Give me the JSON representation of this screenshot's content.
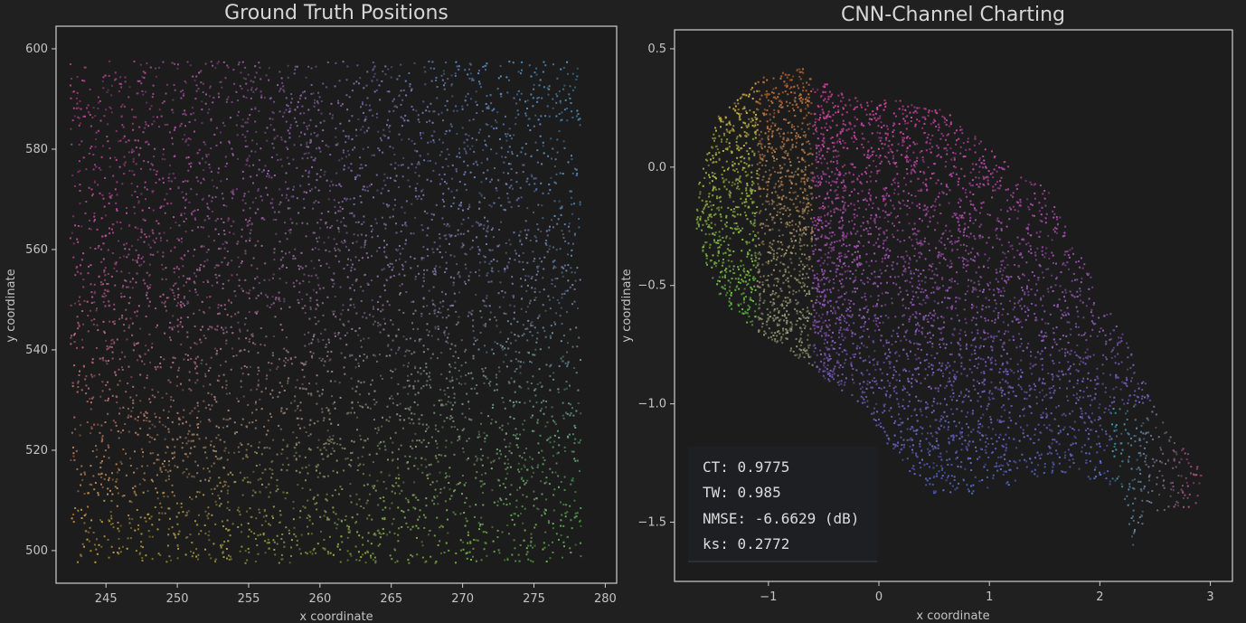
{
  "colors": {
    "background": "#202020",
    "axes_face": "#1c1c1c",
    "frame": "#cfcfcf",
    "text": "#c4c4c4",
    "title": "#d6d6d6",
    "stat_box": "#1d1f22"
  },
  "chart_data": [
    {
      "type": "scatter",
      "title": "Ground Truth Positions",
      "xlabel": "x coordinate",
      "ylabel": "y coordinate",
      "xlim": [
        241.5,
        280.8
      ],
      "ylim": [
        493.5,
        604.5
      ],
      "xticks": [
        245,
        250,
        255,
        260,
        265,
        270,
        275,
        280
      ],
      "yticks": [
        500,
        520,
        540,
        560,
        580,
        600
      ],
      "x_range_points": [
        242.5,
        278.3
      ],
      "y_range_points": [
        497.5,
        597.5
      ],
      "approx_points": 5200,
      "color_mapping": {
        "bottom_left": "#c9a23c",
        "bottom_right": "#5fb84a",
        "top_left": "#c0408f",
        "top_right": "#4a9dc6",
        "middle": "#b056b8"
      },
      "grid": false,
      "legend": "none"
    },
    {
      "type": "scatter",
      "title": "CNN-Channel Charting",
      "xlabel": "x coordinate",
      "ylabel": "y coordinate",
      "xlim": [
        -1.85,
        3.2
      ],
      "ylim": [
        -1.75,
        0.58
      ],
      "xticks": [
        -1,
        0,
        1,
        2,
        3
      ],
      "yticks": [
        0.5,
        0.0,
        -0.5,
        -1.0,
        -1.5
      ],
      "approx_points": 5200,
      "cloud_outline": [
        [
          -1.65,
          -0.1
        ],
        [
          -1.45,
          0.22
        ],
        [
          -1.05,
          0.38
        ],
        [
          -0.7,
          0.42
        ],
        [
          -0.3,
          0.3
        ],
        [
          0.2,
          0.28
        ],
        [
          0.6,
          0.24
        ],
        [
          0.9,
          0.12
        ],
        [
          1.2,
          0.0
        ],
        [
          1.55,
          -0.1
        ],
        [
          1.9,
          -0.45
        ],
        [
          2.2,
          -0.7
        ],
        [
          2.55,
          -1.05
        ],
        [
          2.95,
          -1.3
        ],
        [
          2.85,
          -1.45
        ],
        [
          2.45,
          -1.45
        ],
        [
          2.3,
          -1.6
        ],
        [
          2.2,
          -1.35
        ],
        [
          1.5,
          -1.3
        ],
        [
          0.9,
          -1.38
        ],
        [
          0.5,
          -1.38
        ],
        [
          0.2,
          -1.25
        ],
        [
          -0.2,
          -1.0
        ],
        [
          -0.6,
          -0.85
        ],
        [
          -1.1,
          -0.7
        ],
        [
          -1.45,
          -0.55
        ],
        [
          -1.65,
          -0.3
        ]
      ],
      "stats": {
        "ct": "CT: 0.9775",
        "tw": "TW: 0.985",
        "nmse": "NMSE: -6.6629 (dB)",
        "ks": "ks: 0.2772"
      },
      "grid": false,
      "legend": "none"
    }
  ]
}
